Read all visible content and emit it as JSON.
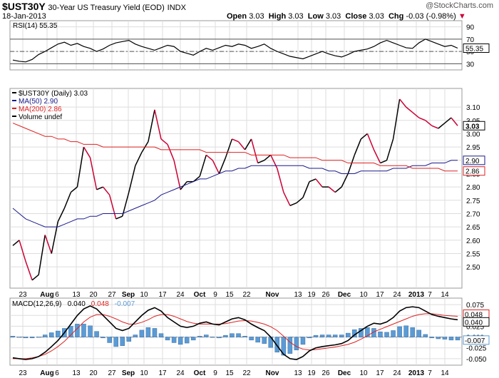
{
  "header": {
    "ticker": "$UST30Y",
    "title": "30-Year US Treasury Yield (EOD)",
    "exchange": "INDX",
    "date": "18-Jan-2013",
    "open_label": "Open",
    "open": "3.03",
    "high_label": "High",
    "high": "3.03",
    "low_label": "Low",
    "low": "3.03",
    "close_label": "Close",
    "close": "3.03",
    "chg_label": "Chg",
    "chg": "-0.03 (-0.98%)",
    "watermark": "@StockCharts.com"
  },
  "colors": {
    "price_up": "#000000",
    "price_down": "#cc0033",
    "ma50": "#1a1a8c",
    "ma200": "#dd2222",
    "macd_line": "#000000",
    "signal_line": "#dd2222",
    "histogram": "#5b9bd5",
    "grid": "#dddddd"
  },
  "chart_data": [
    {
      "type": "line",
      "panel": "rsi",
      "legend": "RSI(14) 55.35",
      "ylim": [
        20,
        100
      ],
      "ticks": [
        "90",
        "70",
        "50",
        "30"
      ],
      "reference_lines": [
        70,
        50,
        30
      ],
      "last_value_label": "55.35",
      "x": [
        0,
        3,
        6,
        9,
        12,
        15,
        18,
        21,
        24,
        27,
        30,
        33,
        36,
        39,
        42,
        45,
        48,
        51,
        54,
        57,
        60,
        63,
        66,
        69,
        72,
        75,
        78,
        81,
        84,
        87,
        90,
        93,
        96,
        99,
        102,
        105,
        108,
        111,
        114,
        117,
        120,
        123,
        126,
        129,
        132,
        135,
        138,
        141,
        144,
        147,
        150,
        153,
        156,
        159,
        162,
        165,
        168,
        171,
        174,
        177,
        180,
        183,
        186,
        189,
        192,
        195,
        198,
        201,
        204,
        207
      ],
      "values": [
        36,
        34,
        33,
        37,
        45,
        50,
        56,
        62,
        65,
        60,
        63,
        58,
        55,
        50,
        54,
        60,
        64,
        66,
        68,
        62,
        58,
        55,
        52,
        56,
        60,
        58,
        50,
        47,
        44,
        50,
        55,
        52,
        56,
        60,
        58,
        62,
        60,
        55,
        58,
        62,
        55,
        50,
        46,
        42,
        40,
        38,
        42,
        46,
        50,
        46,
        43,
        41,
        45,
        50,
        52,
        54,
        58,
        64,
        68,
        64,
        60,
        56,
        55,
        64,
        70,
        66,
        62,
        58,
        60,
        55.35
      ]
    },
    {
      "type": "line",
      "panel": "price",
      "legend": [
        "$UST30Y (Daily) 3.03",
        "MA(50) 2.90",
        "MA(200) 2.86",
        "Volume undef"
      ],
      "ylim": [
        2.42,
        3.17
      ],
      "ticks": [
        "3.10",
        "3.05",
        "3.00",
        "2.95",
        "2.90",
        "2.85",
        "2.80",
        "2.75",
        "2.70",
        "2.65",
        "2.60",
        "2.55",
        "2.50"
      ],
      "value_labels": [
        "3.03",
        "2.90",
        "2.86"
      ],
      "x_ticks": [
        "23",
        "Aug",
        "6",
        "13",
        "20",
        "27",
        "Sep",
        "10",
        "17",
        "24",
        "Oct",
        "9",
        "15",
        "22",
        "Nov",
        "13",
        "19",
        "26",
        "Dec",
        "10",
        "17",
        "24",
        "2013",
        "7",
        "14"
      ],
      "x": [
        0,
        3,
        6,
        9,
        12,
        15,
        18,
        21,
        24,
        27,
        30,
        33,
        36,
        39,
        42,
        45,
        48,
        51,
        54,
        57,
        60,
        63,
        66,
        69,
        72,
        75,
        78,
        81,
        84,
        87,
        90,
        93,
        96,
        99,
        102,
        105,
        108,
        111,
        114,
        117,
        120,
        123,
        126,
        129,
        132,
        135,
        138,
        141,
        144,
        147,
        150,
        153,
        156,
        159,
        162,
        165,
        168,
        171,
        174,
        177,
        180,
        183,
        186,
        189,
        192,
        195,
        198,
        201,
        204,
        207
      ],
      "series": [
        {
          "name": "$UST30Y",
          "values": [
            2.58,
            2.6,
            2.52,
            2.45,
            2.47,
            2.62,
            2.55,
            2.67,
            2.72,
            2.78,
            2.8,
            2.95,
            2.91,
            2.79,
            2.8,
            2.77,
            2.68,
            2.69,
            2.78,
            2.88,
            2.93,
            2.97,
            3.09,
            2.98,
            2.96,
            2.9,
            2.79,
            2.82,
            2.82,
            2.84,
            2.92,
            2.9,
            2.85,
            2.91,
            2.98,
            2.97,
            2.94,
            2.98,
            2.89,
            2.9,
            2.92,
            2.87,
            2.78,
            2.73,
            2.74,
            2.76,
            2.82,
            2.83,
            2.8,
            2.8,
            2.78,
            2.8,
            2.85,
            2.92,
            2.98,
            3.0,
            2.94,
            2.89,
            2.9,
            2.98,
            3.13,
            3.1,
            3.08,
            3.06,
            3.05,
            3.03,
            3.02,
            3.04,
            3.06,
            3.03
          ]
        },
        {
          "name": "MA(50)",
          "values": [
            2.72,
            2.7,
            2.68,
            2.67,
            2.66,
            2.65,
            2.65,
            2.65,
            2.66,
            2.67,
            2.68,
            2.68,
            2.69,
            2.69,
            2.7,
            2.7,
            2.7,
            2.7,
            2.71,
            2.72,
            2.73,
            2.74,
            2.75,
            2.77,
            2.78,
            2.79,
            2.8,
            2.81,
            2.82,
            2.83,
            2.83,
            2.84,
            2.85,
            2.86,
            2.86,
            2.87,
            2.87,
            2.88,
            2.88,
            2.88,
            2.88,
            2.88,
            2.88,
            2.88,
            2.88,
            2.88,
            2.87,
            2.87,
            2.87,
            2.86,
            2.86,
            2.85,
            2.85,
            2.85,
            2.86,
            2.86,
            2.86,
            2.86,
            2.86,
            2.87,
            2.87,
            2.87,
            2.88,
            2.88,
            2.88,
            2.89,
            2.89,
            2.89,
            2.9,
            2.9
          ]
        },
        {
          "name": "MA(200)",
          "values": [
            3.04,
            3.03,
            3.02,
            3.01,
            3.0,
            2.99,
            2.99,
            2.98,
            2.98,
            2.97,
            2.97,
            2.96,
            2.96,
            2.96,
            2.95,
            2.95,
            2.95,
            2.95,
            2.95,
            2.95,
            2.95,
            2.95,
            2.95,
            2.94,
            2.94,
            2.94,
            2.94,
            2.94,
            2.94,
            2.94,
            2.93,
            2.93,
            2.93,
            2.93,
            2.93,
            2.93,
            2.93,
            2.92,
            2.92,
            2.92,
            2.92,
            2.92,
            2.92,
            2.91,
            2.91,
            2.91,
            2.91,
            2.91,
            2.9,
            2.9,
            2.9,
            2.9,
            2.89,
            2.89,
            2.89,
            2.89,
            2.89,
            2.88,
            2.88,
            2.88,
            2.88,
            2.88,
            2.87,
            2.87,
            2.87,
            2.87,
            2.87,
            2.86,
            2.86,
            2.86
          ]
        }
      ]
    },
    {
      "type": "line",
      "panel": "macd",
      "legend": [
        "MACD(12,26,9)",
        "0.040",
        "0.048",
        "-0.007"
      ],
      "ylim": [
        -0.065,
        0.09
      ],
      "ticks": [
        "0.075",
        "0.050",
        "0.025",
        "0.000",
        "-0.025",
        "-0.050"
      ],
      "value_labels": [
        "0.048",
        "0.040",
        "-0.007"
      ],
      "x_ticks": [
        "23",
        "Aug",
        "6",
        "13",
        "20",
        "27",
        "Sep",
        "10",
        "17",
        "24",
        "Oct",
        "9",
        "15",
        "22",
        "Nov",
        "13",
        "19",
        "26",
        "Dec",
        "10",
        "17",
        "24",
        "2013",
        "7",
        "14"
      ],
      "x": [
        0,
        3,
        6,
        9,
        12,
        15,
        18,
        21,
        24,
        27,
        30,
        33,
        36,
        39,
        42,
        45,
        48,
        51,
        54,
        57,
        60,
        63,
        66,
        69,
        72,
        75,
        78,
        81,
        84,
        87,
        90,
        93,
        96,
        99,
        102,
        105,
        108,
        111,
        114,
        117,
        120,
        123,
        126,
        129,
        132,
        135,
        138,
        141,
        144,
        147,
        150,
        153,
        156,
        159,
        162,
        165,
        168,
        171,
        174,
        177,
        180,
        183,
        186,
        189,
        192,
        195,
        198,
        201,
        204,
        207
      ],
      "series": [
        {
          "name": "MACD",
          "values": [
            -0.048,
            -0.05,
            -0.052,
            -0.05,
            -0.045,
            -0.035,
            -0.022,
            -0.008,
            0.01,
            0.03,
            0.05,
            0.065,
            0.072,
            0.065,
            0.05,
            0.035,
            0.02,
            0.015,
            0.02,
            0.035,
            0.05,
            0.062,
            0.068,
            0.06,
            0.045,
            0.035,
            0.025,
            0.022,
            0.025,
            0.032,
            0.035,
            0.03,
            0.028,
            0.035,
            0.042,
            0.045,
            0.04,
            0.03,
            0.022,
            0.015,
            0.0,
            -0.02,
            -0.04,
            -0.05,
            -0.052,
            -0.045,
            -0.032,
            -0.025,
            -0.022,
            -0.02,
            -0.018,
            -0.015,
            -0.008,
            0.005,
            0.015,
            0.025,
            0.032,
            0.03,
            0.035,
            0.045,
            0.06,
            0.068,
            0.07,
            0.068,
            0.06,
            0.052,
            0.048,
            0.045,
            0.042,
            0.04
          ]
        },
        {
          "name": "Signal",
          "values": [
            -0.05,
            -0.05,
            -0.05,
            -0.048,
            -0.045,
            -0.04,
            -0.032,
            -0.022,
            -0.01,
            0.005,
            0.02,
            0.035,
            0.046,
            0.052,
            0.052,
            0.048,
            0.042,
            0.035,
            0.03,
            0.03,
            0.034,
            0.04,
            0.048,
            0.052,
            0.052,
            0.048,
            0.042,
            0.036,
            0.032,
            0.03,
            0.03,
            0.03,
            0.03,
            0.031,
            0.034,
            0.037,
            0.038,
            0.037,
            0.034,
            0.03,
            0.024,
            0.015,
            0.002,
            -0.012,
            -0.022,
            -0.028,
            -0.03,
            -0.029,
            -0.027,
            -0.025,
            -0.023,
            -0.02,
            -0.017,
            -0.012,
            -0.005,
            0.003,
            0.012,
            0.018,
            0.024,
            0.03,
            0.036,
            0.042,
            0.048,
            0.052,
            0.054,
            0.054,
            0.052,
            0.05,
            0.049,
            0.048
          ]
        },
        {
          "name": "Histogram",
          "values": [
            0.002,
            0.0,
            -0.002,
            -0.002,
            0.0,
            0.005,
            0.01,
            0.014,
            0.02,
            0.025,
            0.03,
            0.03,
            0.026,
            0.013,
            -0.002,
            -0.013,
            -0.022,
            -0.02,
            -0.01,
            0.005,
            0.016,
            0.022,
            0.02,
            0.008,
            -0.007,
            -0.013,
            -0.017,
            -0.014,
            -0.007,
            0.002,
            0.005,
            0.0,
            -0.002,
            0.004,
            0.008,
            0.008,
            0.002,
            -0.007,
            -0.012,
            -0.015,
            -0.024,
            -0.035,
            -0.042,
            -0.038,
            -0.03,
            -0.017,
            -0.002,
            0.004,
            0.005,
            0.005,
            0.005,
            0.005,
            0.009,
            0.017,
            0.02,
            0.022,
            0.02,
            0.012,
            0.011,
            0.015,
            0.024,
            0.026,
            0.022,
            0.016,
            0.006,
            -0.002,
            -0.004,
            -0.005,
            -0.007,
            -0.007
          ]
        }
      ]
    }
  ]
}
